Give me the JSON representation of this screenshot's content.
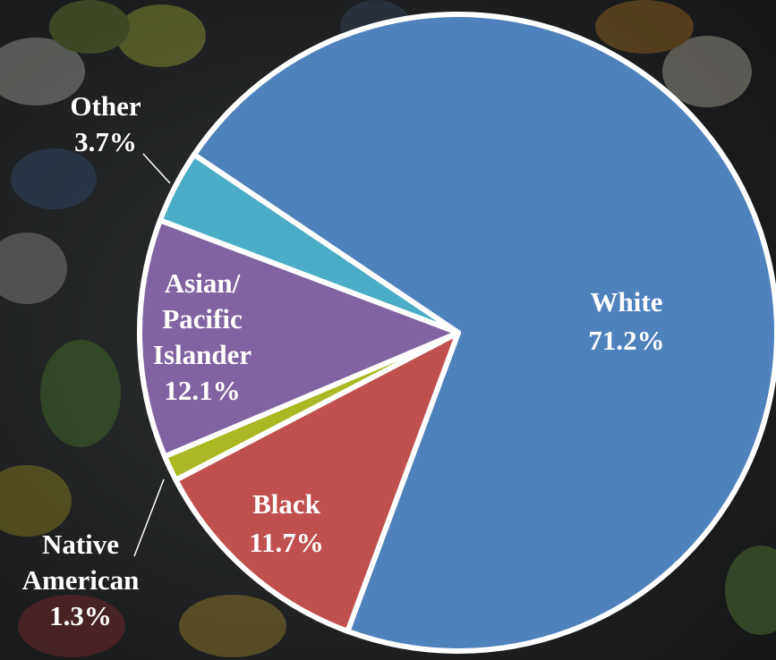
{
  "chart_data": {
    "type": "pie",
    "categories": [
      "White",
      "Black",
      "Native American",
      "Asian/ Pacific Islander",
      "Other"
    ],
    "values": [
      71.2,
      11.7,
      1.3,
      12.1,
      3.7
    ],
    "value_labels": [
      "71.2%",
      "11.7%",
      "1.3%",
      "12.1%",
      "3.7%"
    ],
    "colors": [
      "#4f81bd",
      "#c0504d",
      "#a9b823",
      "#8064a2",
      "#4bacc6"
    ]
  }
}
